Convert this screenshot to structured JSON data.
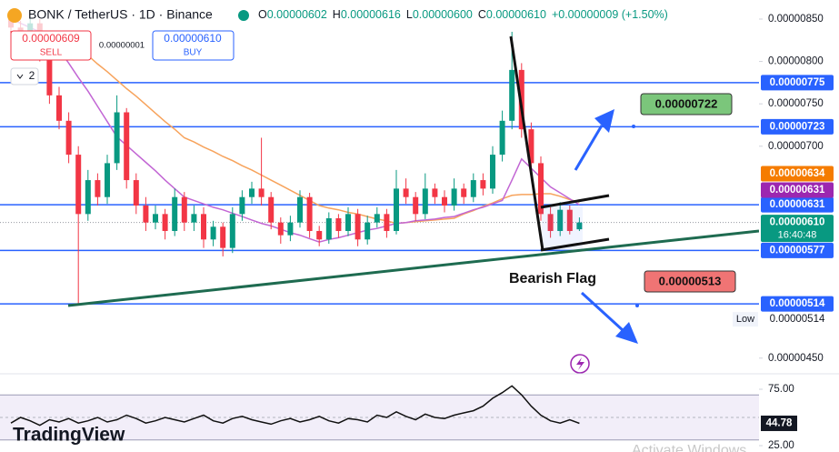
{
  "chart_data": {
    "type": "candlestick",
    "title": "BONK / TetherUS · 1D · Binance",
    "ohlc_header": [
      {
        "key": "O",
        "value": "0.00000602"
      },
      {
        "key": "H",
        "value": "0.00000616"
      },
      {
        "key": "L",
        "value": "0.00000600"
      },
      {
        "key": "C",
        "value": "0.00000610"
      }
    ],
    "change": "+0.00000009 (+1.50%)",
    "trade": {
      "sell_price": "0.00000609",
      "sell": "SELL",
      "spread": "0.00000001",
      "buy_price": "0.00000610",
      "buy": "BUY"
    },
    "indicators_collapsed": "2",
    "up_color": "#089981",
    "down_color": "#f23645",
    "ylim": [
      4.326e-06,
      8.725e-06
    ],
    "yticks": [
      {
        "value": 8.5e-06,
        "label": "0.00000850"
      },
      {
        "value": 8e-06,
        "label": "0.00000800"
      },
      {
        "value": 7.5e-06,
        "label": "0.00000750"
      },
      {
        "value": 7e-06,
        "label": "0.00000700"
      },
      {
        "value": 4.5e-06,
        "label": "0.00000450"
      }
    ],
    "ohlc": [
      [
        8.5e-06,
        8.58e-06,
        8.32e-06,
        8.4e-06
      ],
      [
        8.4e-06,
        8.48e-06,
        8.22e-06,
        8.3e-06
      ],
      [
        8.3e-06,
        8.52e-06,
        8.25e-06,
        8.45e-06
      ],
      [
        8.45e-06,
        8.5e-06,
        8e-06,
        8.1e-06
      ],
      [
        8.1e-06,
        8.15e-06,
        7.5e-06,
        7.6e-06
      ],
      [
        7.6e-06,
        7.7e-06,
        7.2e-06,
        7.3e-06
      ],
      [
        7.3e-06,
        7.4e-06,
        6.8e-06,
        6.9e-06
      ],
      [
        6.9e-06,
        7e-06,
        5.14e-06,
        6.2e-06
      ],
      [
        6.2e-06,
        6.72e-06,
        6.12e-06,
        6.6e-06
      ],
      [
        6.6e-06,
        6.68e-06,
        6.3e-06,
        6.4e-06
      ],
      [
        6.4e-06,
        6.9e-06,
        6.32e-06,
        6.8e-06
      ],
      [
        6.8e-06,
        7.6e-06,
        6.72e-06,
        7.4e-06
      ],
      [
        7.4e-06,
        7.45e-06,
        6.5e-06,
        6.6e-06
      ],
      [
        6.6e-06,
        6.68e-06,
        6.2e-06,
        6.3e-06
      ],
      [
        6.3e-06,
        6.4e-06,
        6e-06,
        6.1e-06
      ],
      [
        6.1e-06,
        6.3e-06,
        6.02e-06,
        6.2e-06
      ],
      [
        6.2e-06,
        6.26e-06,
        5.9e-06,
        6e-06
      ],
      [
        6e-06,
        6.5e-06,
        5.94e-06,
        6.4e-06
      ],
      [
        6.4e-06,
        6.46e-06,
        6e-06,
        6.1e-06
      ],
      [
        6.1e-06,
        6.3e-06,
        6e-06,
        6.2e-06
      ],
      [
        6.2e-06,
        6.28e-06,
        5.8e-06,
        5.9e-06
      ],
      [
        5.9e-06,
        6.12e-06,
        5.82e-06,
        6.05e-06
      ],
      [
        6.05e-06,
        6.1e-06,
        5.7e-06,
        5.8e-06
      ],
      [
        5.8e-06,
        6.28e-06,
        5.74e-06,
        6.2e-06
      ],
      [
        6.2e-06,
        6.48e-06,
        6.12e-06,
        6.4e-06
      ],
      [
        6.4e-06,
        6.58e-06,
        6.32e-06,
        6.5e-06
      ],
      [
        6.5e-06,
        7.1e-06,
        6.3e-06,
        6.4e-06
      ],
      [
        6.4e-06,
        6.46e-06,
        6.02e-06,
        6.1e-06
      ],
      [
        6.1e-06,
        6.16e-06,
        5.85e-06,
        5.95e-06
      ],
      [
        5.95e-06,
        6.18e-06,
        5.88e-06,
        6.1e-06
      ],
      [
        6.1e-06,
        6.48e-06,
        6.04e-06,
        6.4e-06
      ],
      [
        6.4e-06,
        6.45e-06,
        5.92e-06,
        6e-06
      ],
      [
        6e-06,
        6.06e-06,
        5.82e-06,
        5.9e-06
      ],
      [
        5.9e-06,
        6.22e-06,
        5.85e-06,
        6.15e-06
      ],
      [
        6.15e-06,
        6.2e-06,
        5.92e-06,
        6e-06
      ],
      [
        6e-06,
        6.28e-06,
        5.94e-06,
        6.2e-06
      ],
      [
        6.2e-06,
        6.26e-06,
        5.82e-06,
        5.9e-06
      ],
      [
        5.9e-06,
        6.18e-06,
        5.84e-06,
        6.1e-06
      ],
      [
        6.1e-06,
        6.28e-06,
        6.04e-06,
        6.2e-06
      ],
      [
        6.2e-06,
        6.26e-06,
        5.92e-06,
        6e-06
      ],
      [
        6e-06,
        6.72e-06,
        5.96e-06,
        6.5e-06
      ],
      [
        6.5e-06,
        6.62e-06,
        6.32e-06,
        6.4e-06
      ],
      [
        6.4e-06,
        6.46e-06,
        6.12e-06,
        6.2e-06
      ],
      [
        6.2e-06,
        6.68e-06,
        6.14e-06,
        6.5e-06
      ],
      [
        6.5e-06,
        6.56e-06,
        6.32e-06,
        6.4e-06
      ],
      [
        6.4e-06,
        6.48e-06,
        6.22e-06,
        6.3e-06
      ],
      [
        6.3e-06,
        6.62e-06,
        6.24e-06,
        6.5e-06
      ],
      [
        6.5e-06,
        6.56e-06,
        6.32e-06,
        6.4e-06
      ],
      [
        6.4e-06,
        6.68e-06,
        6.34e-06,
        6.6e-06
      ],
      [
        6.6e-06,
        6.68e-06,
        6.42e-06,
        6.5e-06
      ],
      [
        6.5e-06,
        7e-06,
        6.44e-06,
        6.9e-06
      ],
      [
        6.9e-06,
        7.42e-06,
        6.82e-06,
        7.3e-06
      ],
      [
        7.3e-06,
        8.35e-06,
        7.2e-06,
        7.9e-06
      ],
      [
        7.9e-06,
        7.98e-06,
        7.1e-06,
        7.2e-06
      ],
      [
        7.2e-06,
        7.28e-06,
        6.7e-06,
        6.8e-06
      ],
      [
        6.8e-06,
        6.88e-06,
        6.12e-06,
        6.2e-06
      ],
      [
        6.2e-06,
        6.28e-06,
        5.92e-06,
        6e-06
      ],
      [
        6e-06,
        6.34e-06,
        5.94e-06,
        6.25e-06
      ],
      [
        6.25e-06,
        6.3e-06,
        5.96e-06,
        6e-06
      ],
      [
        6.02e-06,
        6.16e-06,
        6e-06,
        6.1e-06
      ]
    ],
    "series": [
      {
        "name": "MA slow",
        "color": "#f7a35c",
        "values": [
          8.3e-06,
          8.27e-06,
          8.24e-06,
          8.21e-06,
          8.18e-06,
          8.16e-06,
          8.13e-06,
          8.1e-06,
          8.07e-06,
          7.97e-06,
          7.88e-06,
          7.78e-06,
          7.68e-06,
          7.59e-06,
          7.49e-06,
          7.39e-06,
          7.29e-06,
          7.2e-06,
          7.1e-06,
          7.05e-06,
          6.99e-06,
          6.94e-06,
          6.88e-06,
          6.83e-06,
          6.77e-06,
          6.72e-06,
          6.66e-06,
          6.6e-06,
          6.54e-06,
          6.48e-06,
          6.42e-06,
          6.36e-06,
          6.3e-06,
          6.27e-06,
          6.25e-06,
          6.22e-06,
          6.2e-06,
          6.17e-06,
          6.14e-06,
          6.12e-06,
          6.09e-06,
          6.1e-06,
          6.11e-06,
          6.12e-06,
          6.13e-06,
          6.14e-06,
          6.15e-06,
          6.2e-06,
          6.24e-06,
          6.29e-06,
          6.33e-06,
          6.38e-06,
          6.42e-06,
          6.43e-06,
          6.43e-06,
          6.44e-06,
          6.44e-06,
          6.41e-06,
          6.37e-06,
          6.34e-06
        ]
      },
      {
        "name": "MA fast",
        "color": "#c266d4",
        "values": [
          8.5e-06,
          8.45e-06,
          8.4e-06,
          8.35e-06,
          8.3e-06,
          8.14e-06,
          7.98e-06,
          7.81e-06,
          7.65e-06,
          7.47e-06,
          7.29e-06,
          7.11e-06,
          7.01e-06,
          6.91e-06,
          6.81e-06,
          6.71e-06,
          6.6e-06,
          6.5e-06,
          6.4e-06,
          6.36e-06,
          6.32e-06,
          6.28e-06,
          6.25e-06,
          6.21e-06,
          6.17e-06,
          6.13e-06,
          6.09e-06,
          6.06e-06,
          6.02e-06,
          5.98e-06,
          5.95e-06,
          5.91e-06,
          5.87e-06,
          5.9e-06,
          5.92e-06,
          5.95e-06,
          5.98e-06,
          6.01e-06,
          6.03e-06,
          6.06e-06,
          6.09e-06,
          6.1e-06,
          6.12e-06,
          6.13e-06,
          6.14e-06,
          6.16e-06,
          6.17e-06,
          6.21e-06,
          6.25e-06,
          6.28e-06,
          6.32e-06,
          6.36e-06,
          6.6e-06,
          6.85e-06,
          6.74e-06,
          6.63e-06,
          6.52e-06,
          6.45e-06,
          6.38e-06,
          6.31e-06
        ]
      }
    ],
    "levels": [
      {
        "value": 7.75e-06,
        "label": "0.00000775"
      },
      {
        "value": 7.23e-06,
        "label": "0.00000723"
      },
      {
        "value": 6.31e-06,
        "label": "0.00000631"
      },
      {
        "value": 5.77e-06,
        "label": "0.00000577"
      },
      {
        "value": 5.14e-06,
        "label": "0.00000514"
      }
    ],
    "level_color": "#2962ff",
    "ma_tags": [
      {
        "value": 6.34e-06,
        "label": "0.00000634",
        "color": "#f57c00"
      },
      {
        "value": 6.31e-06,
        "label": "0.00000631",
        "color": "#9c27b0"
      }
    ],
    "last_price": {
      "value": 6.1e-06,
      "label": "0.00000610",
      "countdown": "16:40:48",
      "color": "#089981"
    },
    "low": {
      "name": "Low",
      "value": 5.14e-06,
      "label": "0.00000514"
    },
    "targets": [
      {
        "label": "0.00000722",
        "color": "#7bc67b"
      },
      {
        "label": "0.00000513",
        "color": "#f07474"
      }
    ],
    "pattern_label": "Bearish Flag",
    "rsi": {
      "values": [
        45,
        50,
        47,
        43,
        48,
        46,
        49,
        45,
        47,
        50,
        46,
        48,
        52,
        49,
        45,
        47,
        50,
        48,
        46,
        49,
        52,
        47,
        45,
        49,
        51,
        48,
        46,
        44,
        47,
        49,
        46,
        48,
        51,
        47,
        45,
        49,
        48,
        46,
        52,
        50,
        55,
        51,
        48,
        53,
        50,
        49,
        52,
        54,
        56,
        60,
        67,
        72,
        78,
        70,
        60,
        52,
        47,
        45,
        48,
        44.78
      ],
      "ylim": [
        19.35,
        87.9
      ],
      "yticks": [
        {
          "value": 75,
          "label": "75.00"
        },
        {
          "value": 25,
          "label": "25.00"
        }
      ],
      "band": [
        30,
        70
      ],
      "color": "#111111",
      "band_color": "#7e57c2"
    },
    "logo": "TradingView",
    "watermark": "Activate Windows"
  }
}
